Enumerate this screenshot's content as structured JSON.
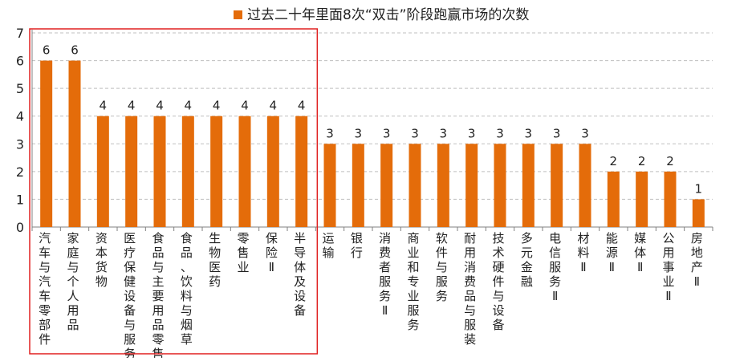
{
  "chart_data": {
    "type": "bar",
    "title": "",
    "xlabel": "",
    "ylabel": "",
    "ylim": [
      0,
      7
    ],
    "yticks": [
      0,
      1,
      2,
      3,
      4,
      5,
      6,
      7
    ],
    "grid": "horizontal dashed",
    "legend_position": "top",
    "colors": {
      "bar": "#E46C0A",
      "highlight_box": "#E02020",
      "grid": "#BFBFBF",
      "axis": "#808080",
      "text": "#222222"
    },
    "categories": [
      "汽车与汽车零部件",
      "家庭与个人用品",
      "资本货物",
      "医疗保健设备与服务",
      "食品与主要用品零售",
      "食品、饮料与烟草",
      "生物医药",
      "零售业",
      "保险Ⅱ",
      "半导体及设备",
      "运输",
      "银行",
      "消费者服务Ⅱ",
      "商业和专业服务",
      "软件与服务",
      "耐用消费品与服装",
      "技术硬件与设备",
      "多元金融",
      "电信服务Ⅱ",
      "材料Ⅱ",
      "能源Ⅱ",
      "媒体Ⅱ",
      "公用事业Ⅱ",
      "房地产Ⅱ"
    ],
    "series": [
      {
        "name": "过去二十年里面8次“双击”阶段跑赢市场的次数",
        "values": [
          6,
          6,
          4,
          4,
          4,
          4,
          4,
          4,
          4,
          4,
          3,
          3,
          3,
          3,
          3,
          3,
          3,
          3,
          3,
          3,
          2,
          2,
          2,
          1
        ]
      }
    ],
    "highlight_range": [
      0,
      9
    ]
  }
}
